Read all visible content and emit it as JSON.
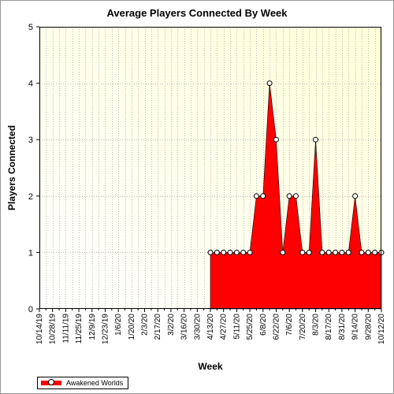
{
  "chart_data": {
    "type": "area",
    "title": "Average Players Connected By Week",
    "xlabel": "Week",
    "ylabel": "Players Connected",
    "ylim": [
      0,
      5
    ],
    "yticks": [
      "0",
      "1",
      "2",
      "3",
      "4",
      "5"
    ],
    "categories": [
      "10/14/19",
      "10/21/19",
      "10/28/19",
      "11/4/19",
      "11/11/19",
      "11/18/19",
      "11/25/19",
      "12/2/19",
      "12/9/19",
      "12/16/19",
      "12/23/19",
      "12/30/19",
      "1/6/20",
      "1/13/20",
      "1/20/20",
      "1/27/20",
      "2/3/20",
      "2/10/20",
      "2/17/20",
      "2/24/20",
      "3/2/20",
      "3/9/20",
      "3/16/20",
      "3/23/20",
      "3/30/20",
      "4/6/20",
      "4/13/20",
      "4/20/20",
      "4/27/20",
      "5/4/20",
      "5/11/20",
      "5/18/20",
      "5/25/20",
      "6/1/20",
      "6/8/20",
      "6/15/20",
      "6/22/20",
      "6/29/20",
      "7/6/20",
      "7/13/20",
      "7/20/20",
      "7/27/20",
      "8/3/20",
      "8/10/20",
      "8/17/20",
      "8/24/20",
      "8/31/20",
      "9/7/20",
      "9/14/20",
      "9/21/20",
      "9/28/20",
      "10/5/20",
      "10/12/20"
    ],
    "x_tick_labels": [
      "10/14/19",
      "10/28/19",
      "11/11/19",
      "11/25/19",
      "12/9/19",
      "12/23/19",
      "1/6/20",
      "1/20/20",
      "2/3/20",
      "2/17/20",
      "3/2/20",
      "3/16/20",
      "3/30/20",
      "4/13/20",
      "4/27/20",
      "5/11/20",
      "5/25/20",
      "6/8/20",
      "6/22/20",
      "7/6/20",
      "7/20/20",
      "8/3/20",
      "8/17/20",
      "8/31/20",
      "9/14/20",
      "9/28/20",
      "10/12/20"
    ],
    "series": [
      {
        "name": "Awakened Worlds",
        "color": "#ff0000",
        "values": [
          null,
          null,
          null,
          null,
          null,
          null,
          null,
          null,
          null,
          null,
          null,
          null,
          null,
          null,
          null,
          null,
          null,
          null,
          null,
          null,
          null,
          null,
          null,
          null,
          null,
          null,
          1,
          1,
          1,
          1,
          1,
          1,
          1,
          2,
          2,
          4,
          3,
          1,
          2,
          2,
          1,
          1,
          3,
          1,
          1,
          1,
          1,
          1,
          2,
          1,
          1,
          1,
          1
        ]
      }
    ],
    "grid": true,
    "plot_background": [
      "#ffffff",
      "#ffffd8"
    ],
    "legend": "bottom-left"
  }
}
